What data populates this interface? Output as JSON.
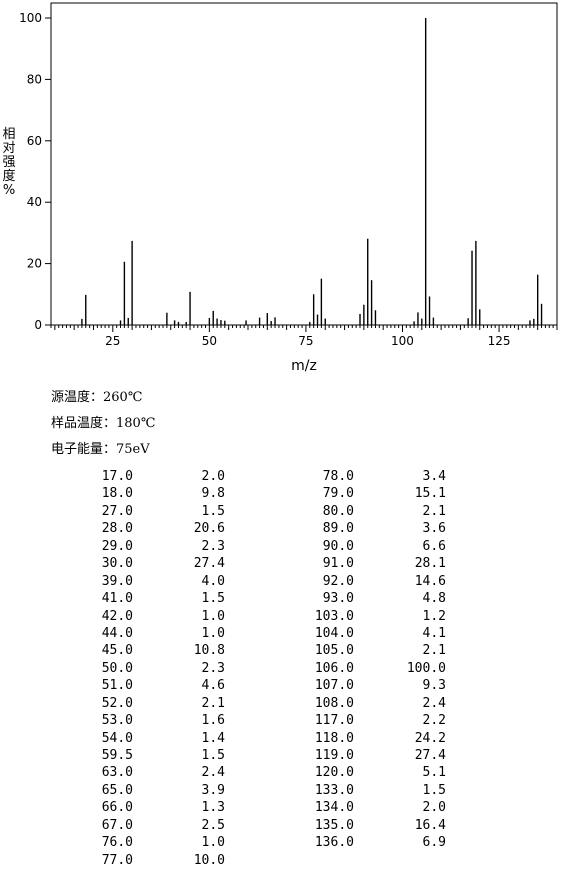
{
  "chart_data": {
    "type": "bar",
    "xlabel": "m/z",
    "ylabel": "相对强度%",
    "xlim": [
      9,
      140
    ],
    "ylim": [
      0,
      100
    ],
    "xticks": [
      25,
      50,
      75,
      100,
      125
    ],
    "yticks": [
      0,
      20,
      40,
      60,
      80,
      100
    ],
    "peaks": [
      [
        17.0,
        2.0
      ],
      [
        18.0,
        9.8
      ],
      [
        27.0,
        1.5
      ],
      [
        28.0,
        20.6
      ],
      [
        29.0,
        2.3
      ],
      [
        30.0,
        27.4
      ],
      [
        39.0,
        4.0
      ],
      [
        41.0,
        1.5
      ],
      [
        42.0,
        1.0
      ],
      [
        44.0,
        1.0
      ],
      [
        45.0,
        10.8
      ],
      [
        50.0,
        2.3
      ],
      [
        51.0,
        4.6
      ],
      [
        52.0,
        2.1
      ],
      [
        53.0,
        1.6
      ],
      [
        54.0,
        1.4
      ],
      [
        59.5,
        1.5
      ],
      [
        63.0,
        2.4
      ],
      [
        65.0,
        3.9
      ],
      [
        66.0,
        1.3
      ],
      [
        67.0,
        2.5
      ],
      [
        76.0,
        1.0
      ],
      [
        77.0,
        10.0
      ],
      [
        78.0,
        3.4
      ],
      [
        79.0,
        15.1
      ],
      [
        80.0,
        2.1
      ],
      [
        89.0,
        3.6
      ],
      [
        90.0,
        6.6
      ],
      [
        91.0,
        28.1
      ],
      [
        92.0,
        14.6
      ],
      [
        93.0,
        4.8
      ],
      [
        103.0,
        1.2
      ],
      [
        104.0,
        4.1
      ],
      [
        105.0,
        2.1
      ],
      [
        106.0,
        100.0
      ],
      [
        107.0,
        9.3
      ],
      [
        108.0,
        2.4
      ],
      [
        117.0,
        2.2
      ],
      [
        118.0,
        24.2
      ],
      [
        119.0,
        27.4
      ],
      [
        120.0,
        5.1
      ],
      [
        133.0,
        1.5
      ],
      [
        134.0,
        2.0
      ],
      [
        135.0,
        16.4
      ],
      [
        136.0,
        6.9
      ]
    ]
  },
  "conditions": {
    "source_temp": "源温度：260℃",
    "sample_temp": "样品温度：180℃",
    "electron_energy": "电子能量：75eV"
  },
  "table": {
    "left": [
      [
        "17.0",
        "2.0"
      ],
      [
        "18.0",
        "9.8"
      ],
      [
        "27.0",
        "1.5"
      ],
      [
        "28.0",
        "20.6"
      ],
      [
        "29.0",
        "2.3"
      ],
      [
        "30.0",
        "27.4"
      ],
      [
        "39.0",
        "4.0"
      ],
      [
        "41.0",
        "1.5"
      ],
      [
        "42.0",
        "1.0"
      ],
      [
        "44.0",
        "1.0"
      ],
      [
        "45.0",
        "10.8"
      ],
      [
        "50.0",
        "2.3"
      ],
      [
        "51.0",
        "4.6"
      ],
      [
        "52.0",
        "2.1"
      ],
      [
        "53.0",
        "1.6"
      ],
      [
        "54.0",
        "1.4"
      ],
      [
        "59.5",
        "1.5"
      ],
      [
        "63.0",
        "2.4"
      ],
      [
        "65.0",
        "3.9"
      ],
      [
        "66.0",
        "1.3"
      ],
      [
        "67.0",
        "2.5"
      ],
      [
        "76.0",
        "1.0"
      ],
      [
        "77.0",
        "10.0"
      ]
    ],
    "right": [
      [
        "78.0",
        "3.4"
      ],
      [
        "79.0",
        "15.1"
      ],
      [
        "80.0",
        "2.1"
      ],
      [
        "89.0",
        "3.6"
      ],
      [
        "90.0",
        "6.6"
      ],
      [
        "91.0",
        "28.1"
      ],
      [
        "92.0",
        "14.6"
      ],
      [
        "93.0",
        "4.8"
      ],
      [
        "103.0",
        "1.2"
      ],
      [
        "104.0",
        "4.1"
      ],
      [
        "105.0",
        "2.1"
      ],
      [
        "106.0",
        "100.0"
      ],
      [
        "107.0",
        "9.3"
      ],
      [
        "108.0",
        "2.4"
      ],
      [
        "117.0",
        "2.2"
      ],
      [
        "118.0",
        "24.2"
      ],
      [
        "119.0",
        "27.4"
      ],
      [
        "120.0",
        "5.1"
      ],
      [
        "133.0",
        "1.5"
      ],
      [
        "134.0",
        "2.0"
      ],
      [
        "135.0",
        "16.4"
      ],
      [
        "136.0",
        "6.9"
      ]
    ]
  }
}
